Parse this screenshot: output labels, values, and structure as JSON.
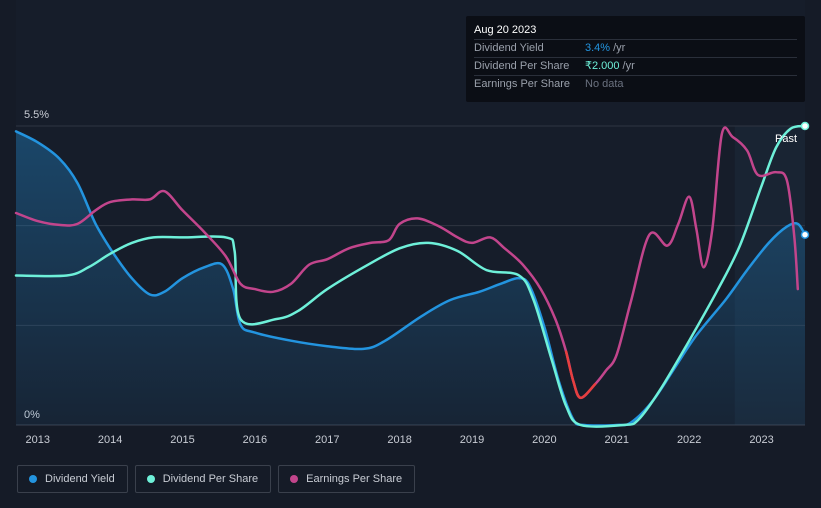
{
  "chart_data": {
    "type": "line",
    "y_axis_labels": [
      "5.5%",
      "0%"
    ],
    "ylim": [
      0,
      5.5
    ],
    "xlim": [
      2012.7,
      2023.6
    ],
    "x_ticks": [
      "2013",
      "2014",
      "2015",
      "2016",
      "2017",
      "2018",
      "2019",
      "2020",
      "2021",
      "2022",
      "2023"
    ],
    "past_label": "Past",
    "past_start": 2022.63,
    "series": [
      {
        "name": "Dividend Yield",
        "color": "#2394df",
        "fill": true,
        "points": [
          [
            2012.7,
            5.4
          ],
          [
            2013.0,
            5.2
          ],
          [
            2013.3,
            4.9
          ],
          [
            2013.55,
            4.45
          ],
          [
            2013.8,
            3.7
          ],
          [
            2014.05,
            3.15
          ],
          [
            2014.3,
            2.7
          ],
          [
            2014.55,
            2.4
          ],
          [
            2014.75,
            2.45
          ],
          [
            2015.0,
            2.7
          ],
          [
            2015.3,
            2.9
          ],
          [
            2015.55,
            2.95
          ],
          [
            2015.7,
            2.5
          ],
          [
            2015.8,
            1.85
          ],
          [
            2016.0,
            1.7
          ],
          [
            2016.5,
            1.55
          ],
          [
            2017.0,
            1.45
          ],
          [
            2017.5,
            1.4
          ],
          [
            2017.8,
            1.55
          ],
          [
            2018.3,
            2.0
          ],
          [
            2018.7,
            2.3
          ],
          [
            2019.1,
            2.45
          ],
          [
            2019.4,
            2.6
          ],
          [
            2019.65,
            2.7
          ],
          [
            2019.8,
            2.55
          ],
          [
            2020.0,
            1.8
          ],
          [
            2020.2,
            0.8
          ],
          [
            2020.4,
            0.1
          ],
          [
            2020.55,
            0
          ],
          [
            2021.0,
            0
          ],
          [
            2021.2,
            0.05
          ],
          [
            2021.5,
            0.45
          ],
          [
            2021.8,
            1.05
          ],
          [
            2022.1,
            1.65
          ],
          [
            2022.5,
            2.3
          ],
          [
            2022.8,
            2.85
          ],
          [
            2023.1,
            3.35
          ],
          [
            2023.35,
            3.65
          ],
          [
            2023.5,
            3.7
          ],
          [
            2023.6,
            3.5
          ]
        ]
      },
      {
        "name": "Dividend Per Share",
        "color": "#6ef0d9",
        "fill": false,
        "points": [
          [
            2012.7,
            2.75
          ],
          [
            2013.4,
            2.75
          ],
          [
            2013.7,
            2.9
          ],
          [
            2014.0,
            3.15
          ],
          [
            2014.3,
            3.35
          ],
          [
            2014.6,
            3.45
          ],
          [
            2015.0,
            3.45
          ],
          [
            2015.6,
            3.45
          ],
          [
            2015.72,
            3.2
          ],
          [
            2015.8,
            1.95
          ],
          [
            2016.3,
            1.95
          ],
          [
            2016.6,
            2.1
          ],
          [
            2017.0,
            2.5
          ],
          [
            2017.5,
            2.9
          ],
          [
            2018.0,
            3.25
          ],
          [
            2018.4,
            3.35
          ],
          [
            2018.8,
            3.2
          ],
          [
            2019.2,
            2.85
          ],
          [
            2019.65,
            2.75
          ],
          [
            2019.85,
            2.3
          ],
          [
            2020.1,
            1.2
          ],
          [
            2020.3,
            0.35
          ],
          [
            2020.5,
            0
          ],
          [
            2021.1,
            0
          ],
          [
            2021.3,
            0.1
          ],
          [
            2021.6,
            0.65
          ],
          [
            2022.0,
            1.55
          ],
          [
            2022.4,
            2.5
          ],
          [
            2022.7,
            3.3
          ],
          [
            2023.0,
            4.4
          ],
          [
            2023.2,
            5.1
          ],
          [
            2023.4,
            5.45
          ],
          [
            2023.6,
            5.5
          ]
        ]
      },
      {
        "name": "Earnings Per Share",
        "color": "#c2458c",
        "fill": false,
        "negative_color": "#e63f3f",
        "points": [
          [
            2012.7,
            3.9
          ],
          [
            2013.0,
            3.75
          ],
          [
            2013.3,
            3.68
          ],
          [
            2013.55,
            3.7
          ],
          [
            2013.8,
            3.95
          ],
          [
            2014.0,
            4.1
          ],
          [
            2014.3,
            4.15
          ],
          [
            2014.55,
            4.15
          ],
          [
            2014.75,
            4.3
          ],
          [
            2015.0,
            3.95
          ],
          [
            2015.3,
            3.55
          ],
          [
            2015.6,
            3.1
          ],
          [
            2015.8,
            2.6
          ],
          [
            2016.0,
            2.5
          ],
          [
            2016.25,
            2.45
          ],
          [
            2016.5,
            2.6
          ],
          [
            2016.75,
            2.95
          ],
          [
            2017.0,
            3.05
          ],
          [
            2017.3,
            3.25
          ],
          [
            2017.6,
            3.35
          ],
          [
            2017.85,
            3.4
          ],
          [
            2018.0,
            3.7
          ],
          [
            2018.25,
            3.8
          ],
          [
            2018.55,
            3.65
          ],
          [
            2018.8,
            3.45
          ],
          [
            2019.0,
            3.35
          ],
          [
            2019.25,
            3.45
          ],
          [
            2019.45,
            3.25
          ],
          [
            2019.7,
            2.95
          ],
          [
            2019.95,
            2.5
          ],
          [
            2020.15,
            1.95
          ],
          [
            2020.3,
            1.35
          ],
          [
            2020.4,
            0.8
          ],
          [
            2020.5,
            0.5
          ],
          [
            2020.7,
            0.75
          ],
          [
            2020.85,
            1.0
          ],
          [
            2021.0,
            1.3
          ],
          [
            2021.2,
            2.3
          ],
          [
            2021.45,
            3.5
          ],
          [
            2021.7,
            3.3
          ],
          [
            2021.85,
            3.7
          ],
          [
            2022.0,
            4.2
          ],
          [
            2022.1,
            3.6
          ],
          [
            2022.2,
            2.9
          ],
          [
            2022.32,
            3.6
          ],
          [
            2022.45,
            5.35
          ],
          [
            2022.6,
            5.3
          ],
          [
            2022.8,
            5.05
          ],
          [
            2022.95,
            4.6
          ],
          [
            2023.2,
            4.65
          ],
          [
            2023.35,
            4.5
          ],
          [
            2023.45,
            3.5
          ],
          [
            2023.5,
            2.5
          ]
        ],
        "negative_range": [
          2020.25,
          2020.8
        ]
      }
    ]
  },
  "tooltip": {
    "date": "Aug 20 2023",
    "rows": [
      {
        "label": "Dividend Yield",
        "value": "3.4%",
        "unit": "/yr",
        "color": "#2394df"
      },
      {
        "label": "Dividend Per Share",
        "value": "₹2.000",
        "unit": "/yr",
        "color": "#6ef0d9"
      },
      {
        "label": "Earnings Per Share",
        "value": "No data",
        "unit": "",
        "color": "#6b7280"
      }
    ]
  },
  "legend": [
    {
      "label": "Dividend Yield",
      "color": "#2394df"
    },
    {
      "label": "Dividend Per Share",
      "color": "#6ef0d9"
    },
    {
      "label": "Earnings Per Share",
      "color": "#c2458c"
    }
  ]
}
